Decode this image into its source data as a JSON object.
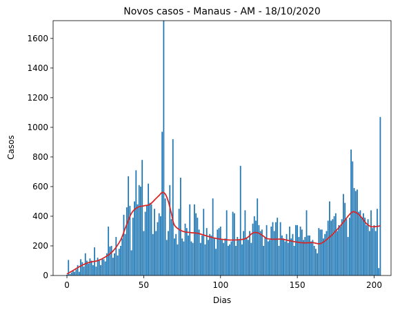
{
  "chart_data": {
    "type": "bar",
    "title": "Novos casos - Manaus - AM - 18/10/2020",
    "xlabel": "Dias",
    "ylabel": "Casos",
    "xlim": [
      -9,
      211
    ],
    "ylim": [
      0,
      1720
    ],
    "xticks": [
      0,
      50,
      100,
      150,
      200
    ],
    "yticks": [
      0,
      200,
      400,
      600,
      800,
      1000,
      1200,
      1400,
      1600
    ],
    "grid": false,
    "colors": {
      "bars": "#1f77b4",
      "trend": "#d62728"
    },
    "series": [
      {
        "type": "bar",
        "x": [
          0,
          1,
          2,
          3,
          4,
          5,
          6,
          7,
          8,
          9,
          10,
          11,
          12,
          13,
          14,
          15,
          16,
          17,
          18,
          19,
          20,
          21,
          22,
          23,
          24,
          25,
          26,
          27,
          28,
          29,
          30,
          31,
          32,
          33,
          34,
          35,
          36,
          37,
          38,
          39,
          40,
          41,
          42,
          43,
          44,
          45,
          46,
          47,
          48,
          49,
          50,
          51,
          52,
          53,
          54,
          55,
          56,
          57,
          58,
          59,
          60,
          61,
          62,
          63,
          64,
          65,
          66,
          67,
          68,
          69,
          70,
          71,
          72,
          73,
          74,
          75,
          76,
          77,
          78,
          79,
          80,
          81,
          82,
          83,
          84,
          85,
          86,
          87,
          88,
          89,
          90,
          91,
          92,
          93,
          94,
          95,
          96,
          97,
          98,
          99,
          100,
          101,
          102,
          103,
          104,
          105,
          106,
          107,
          108,
          109,
          110,
          111,
          112,
          113,
          114,
          115,
          116,
          117,
          118,
          119,
          120,
          121,
          122,
          123,
          124,
          125,
          126,
          127,
          128,
          129,
          130,
          131,
          132,
          133,
          134,
          135,
          136,
          137,
          138,
          139,
          140,
          141,
          142,
          143,
          144,
          145,
          146,
          147,
          148,
          149,
          150,
          151,
          152,
          153,
          154,
          155,
          156,
          157,
          158,
          159,
          160,
          161,
          162,
          163,
          164,
          165,
          166,
          167,
          168,
          169,
          170,
          171,
          172,
          173,
          174,
          175,
          176,
          177,
          178,
          179,
          180,
          181,
          182,
          183,
          184,
          185,
          186,
          187,
          188,
          189,
          190,
          191,
          192,
          193,
          194,
          195,
          196,
          197,
          198,
          199,
          200,
          201,
          202,
          203,
          204
        ],
        "values": [
          5,
          105,
          10,
          20,
          30,
          25,
          40,
          70,
          25,
          110,
          90,
          60,
          150,
          100,
          80,
          115,
          100,
          70,
          190,
          60,
          120,
          100,
          70,
          110,
          110,
          95,
          150,
          330,
          195,
          200,
          120,
          150,
          260,
          135,
          180,
          200,
          250,
          410,
          280,
          460,
          670,
          470,
          170,
          390,
          500,
          710,
          480,
          610,
          600,
          780,
          300,
          430,
          470,
          620,
          490,
          480,
          280,
          450,
          300,
          360,
          420,
          400,
          970,
          1720,
          520,
          240,
          300,
          610,
          380,
          920,
          250,
          280,
          210,
          450,
          660,
          250,
          230,
          350,
          320,
          270,
          480,
          230,
          220,
          480,
          420,
          390,
          310,
          220,
          270,
          450,
          210,
          320,
          240,
          280,
          270,
          520,
          250,
          180,
          310,
          320,
          330,
          240,
          220,
          250,
          440,
          200,
          210,
          230,
          430,
          420,
          200,
          260,
          240,
          740,
          210,
          300,
          440,
          250,
          240,
          300,
          220,
          350,
          400,
          370,
          520,
          340,
          300,
          310,
          200,
          260,
          340,
          230,
          240,
          330,
          360,
          300,
          360,
          390,
          200,
          360,
          270,
          250,
          230,
          280,
          220,
          330,
          250,
          280,
          200,
          340,
          340,
          260,
          330,
          310,
          240,
          260,
          440,
          270,
          270,
          230,
          240,
          200,
          180,
          150,
          320,
          310,
          310,
          250,
          280,
          300,
          370,
          500,
          370,
          380,
          400,
          420,
          300,
          340,
          330,
          380,
          550,
          490,
          380,
          260,
          390,
          850,
          770,
          590,
          570,
          580,
          430,
          440,
          390,
          420,
          390,
          340,
          380,
          300,
          440,
          320,
          340,
          300,
          450,
          50,
          1070
        ]
      },
      {
        "type": "line",
        "x": [
          0,
          5,
          10,
          15,
          20,
          25,
          30,
          35,
          38,
          42,
          46,
          50,
          54,
          58,
          60,
          62,
          64,
          66,
          68,
          70,
          75,
          80,
          85,
          90,
          95,
          100,
          105,
          110,
          115,
          118,
          120,
          122,
          125,
          128,
          130,
          133,
          136,
          140,
          145,
          150,
          155,
          160,
          165,
          170,
          175,
          180,
          183,
          186,
          189,
          192,
          195,
          198,
          201,
          204
        ],
        "values": [
          10,
          40,
          70,
          90,
          100,
          125,
          165,
          240,
          320,
          420,
          460,
          470,
          480,
          520,
          540,
          560,
          550,
          500,
          420,
          340,
          300,
          290,
          285,
          270,
          255,
          245,
          240,
          240,
          245,
          260,
          280,
          290,
          285,
          265,
          250,
          245,
          245,
          245,
          235,
          225,
          220,
          222,
          215,
          250,
          300,
          360,
          400,
          430,
          420,
          390,
          350,
          330,
          330,
          335
        ]
      }
    ]
  }
}
